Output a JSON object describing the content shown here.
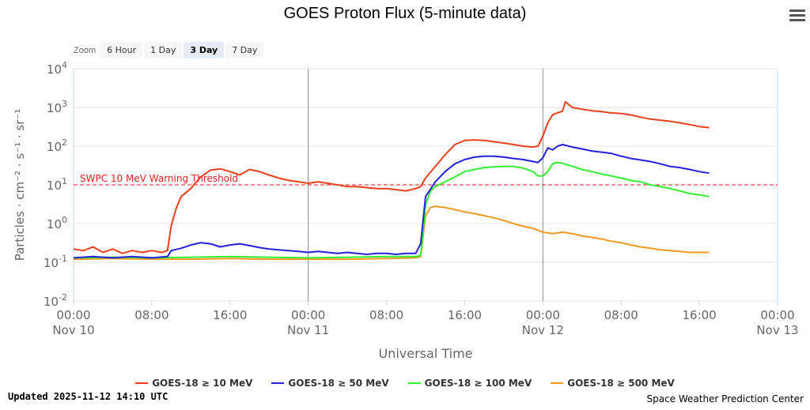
{
  "header": {
    "title": "GOES Proton Flux (5-minute data)",
    "menu_icon": "hamburger-menu-icon"
  },
  "zoom": {
    "label": "Zoom",
    "buttons": [
      {
        "label": "6 Hour",
        "active": false
      },
      {
        "label": "1 Day",
        "active": false
      },
      {
        "label": "3 Day",
        "active": true
      },
      {
        "label": "7 Day",
        "active": false
      }
    ]
  },
  "footer": {
    "updated": "Updated 2025-11-12 14:10 UTC",
    "credit": "Space Weather Prediction Center"
  },
  "chart_data": {
    "type": "line",
    "title": "GOES Proton Flux (5-minute data)",
    "xlabel": "Universal Time",
    "ylabel": "Particles · cm⁻² · s⁻¹ · sr⁻¹",
    "yscale": "log",
    "ylim": [
      0.01,
      10000
    ],
    "xlim_hours": [
      0,
      72
    ],
    "y_ticks": [
      {
        "exp": -2,
        "label_base": "10",
        "label_exp": "-2"
      },
      {
        "exp": -1,
        "label_base": "10",
        "label_exp": "-1"
      },
      {
        "exp": 0,
        "label_base": "10",
        "label_exp": "0"
      },
      {
        "exp": 1,
        "label_base": "10",
        "label_exp": "1"
      },
      {
        "exp": 2,
        "label_base": "10",
        "label_exp": "2"
      },
      {
        "exp": 3,
        "label_base": "10",
        "label_exp": "3"
      },
      {
        "exp": 4,
        "label_base": "10",
        "label_exp": "4"
      }
    ],
    "x_ticks": [
      {
        "hour": 0,
        "time": "00:00",
        "date": "Nov 10"
      },
      {
        "hour": 8,
        "time": "08:00",
        "date": ""
      },
      {
        "hour": 16,
        "time": "16:00",
        "date": ""
      },
      {
        "hour": 24,
        "time": "00:00",
        "date": "Nov 11"
      },
      {
        "hour": 32,
        "time": "08:00",
        "date": ""
      },
      {
        "hour": 40,
        "time": "16:00",
        "date": ""
      },
      {
        "hour": 48,
        "time": "00:00",
        "date": "Nov 12"
      },
      {
        "hour": 56,
        "time": "08:00",
        "date": ""
      },
      {
        "hour": 64,
        "time": "16:00",
        "date": ""
      },
      {
        "hour": 72,
        "time": "00:00",
        "date": "Nov 13"
      }
    ],
    "day_lines_hours": [
      24,
      48
    ],
    "threshold": {
      "value": 10,
      "label": "SWPC 10 MeV Warning Threshold",
      "color": "#dd2222"
    },
    "series": [
      {
        "name": "GOES-18 ≥ 10 MeV",
        "color": "#e8401c",
        "points": [
          [
            0,
            0.22
          ],
          [
            1,
            0.2
          ],
          [
            2,
            0.25
          ],
          [
            3,
            0.18
          ],
          [
            4,
            0.22
          ],
          [
            5,
            0.17
          ],
          [
            6,
            0.2
          ],
          [
            7,
            0.18
          ],
          [
            8,
            0.2
          ],
          [
            9,
            0.18
          ],
          [
            9.6,
            0.2
          ],
          [
            10,
            0.9
          ],
          [
            10.5,
            2.5
          ],
          [
            11,
            5
          ],
          [
            12,
            8
          ],
          [
            13,
            16
          ],
          [
            14,
            24
          ],
          [
            15,
            26
          ],
          [
            16,
            22
          ],
          [
            17,
            18
          ],
          [
            18,
            25
          ],
          [
            19,
            22
          ],
          [
            20,
            18
          ],
          [
            21,
            15
          ],
          [
            22,
            13
          ],
          [
            23,
            12
          ],
          [
            24,
            11
          ],
          [
            25,
            12
          ],
          [
            26,
            11
          ],
          [
            27,
            10
          ],
          [
            28,
            9
          ],
          [
            29,
            9
          ],
          [
            30,
            8.5
          ],
          [
            31,
            8
          ],
          [
            32,
            8
          ],
          [
            33,
            7.5
          ],
          [
            34,
            7
          ],
          [
            34.5,
            7.5
          ],
          [
            35,
            8
          ],
          [
            35.5,
            9
          ],
          [
            36,
            15
          ],
          [
            37,
            30
          ],
          [
            38,
            60
          ],
          [
            39,
            110
          ],
          [
            40,
            140
          ],
          [
            41,
            145
          ],
          [
            42,
            140
          ],
          [
            43,
            130
          ],
          [
            44,
            120
          ],
          [
            45,
            110
          ],
          [
            46,
            100
          ],
          [
            47,
            95
          ],
          [
            47.5,
            100
          ],
          [
            48,
            180
          ],
          [
            48.5,
            400
          ],
          [
            49,
            650
          ],
          [
            50,
            800
          ],
          [
            50.3,
            1400
          ],
          [
            51,
            1000
          ],
          [
            52,
            900
          ],
          [
            53,
            820
          ],
          [
            54,
            780
          ],
          [
            55,
            720
          ],
          [
            56,
            700
          ],
          [
            57,
            640
          ],
          [
            58,
            560
          ],
          [
            59,
            500
          ],
          [
            60,
            470
          ],
          [
            61,
            440
          ],
          [
            62,
            400
          ],
          [
            63,
            360
          ],
          [
            64,
            320
          ],
          [
            65,
            300
          ]
        ]
      },
      {
        "name": "GOES-18 ≥ 50 MeV",
        "color": "#2222dd",
        "points": [
          [
            0,
            0.13
          ],
          [
            2,
            0.14
          ],
          [
            4,
            0.13
          ],
          [
            6,
            0.14
          ],
          [
            8,
            0.13
          ],
          [
            9.6,
            0.14
          ],
          [
            10,
            0.2
          ],
          [
            11,
            0.23
          ],
          [
            12,
            0.28
          ],
          [
            13,
            0.32
          ],
          [
            14,
            0.3
          ],
          [
            15,
            0.25
          ],
          [
            16,
            0.28
          ],
          [
            17,
            0.3
          ],
          [
            18,
            0.27
          ],
          [
            19,
            0.24
          ],
          [
            20,
            0.22
          ],
          [
            21,
            0.21
          ],
          [
            22,
            0.2
          ],
          [
            23,
            0.19
          ],
          [
            24,
            0.18
          ],
          [
            25,
            0.19
          ],
          [
            26,
            0.18
          ],
          [
            27,
            0.17
          ],
          [
            28,
            0.18
          ],
          [
            29,
            0.17
          ],
          [
            30,
            0.16
          ],
          [
            31,
            0.17
          ],
          [
            32,
            0.17
          ],
          [
            33,
            0.16
          ],
          [
            34,
            0.17
          ],
          [
            35,
            0.17
          ],
          [
            35.5,
            0.3
          ],
          [
            36,
            5
          ],
          [
            37,
            12
          ],
          [
            38,
            22
          ],
          [
            39,
            35
          ],
          [
            40,
            45
          ],
          [
            41,
            52
          ],
          [
            42,
            55
          ],
          [
            43,
            55
          ],
          [
            44,
            52
          ],
          [
            45,
            48
          ],
          [
            46,
            45
          ],
          [
            47,
            40
          ],
          [
            47.5,
            38
          ],
          [
            48,
            50
          ],
          [
            48.5,
            90
          ],
          [
            49,
            80
          ],
          [
            49.5,
            100
          ],
          [
            50,
            110
          ],
          [
            51,
            95
          ],
          [
            52,
            85
          ],
          [
            53,
            75
          ],
          [
            54,
            70
          ],
          [
            55,
            65
          ],
          [
            56,
            55
          ],
          [
            57,
            48
          ],
          [
            58,
            44
          ],
          [
            59,
            40
          ],
          [
            60,
            35
          ],
          [
            61,
            30
          ],
          [
            62,
            28
          ],
          [
            63,
            25
          ],
          [
            64,
            22
          ],
          [
            65,
            20
          ]
        ]
      },
      {
        "name": "GOES-18 ≥ 100 MeV",
        "color": "#33ee33",
        "points": [
          [
            0,
            0.13
          ],
          [
            4,
            0.135
          ],
          [
            8,
            0.13
          ],
          [
            12,
            0.135
          ],
          [
            16,
            0.14
          ],
          [
            20,
            0.135
          ],
          [
            24,
            0.13
          ],
          [
            28,
            0.135
          ],
          [
            32,
            0.14
          ],
          [
            35,
            0.14
          ],
          [
            35.5,
            0.15
          ],
          [
            36,
            3
          ],
          [
            36.5,
            7
          ],
          [
            37,
            9
          ],
          [
            38,
            12
          ],
          [
            39,
            16
          ],
          [
            40,
            22
          ],
          [
            41,
            25
          ],
          [
            42,
            28
          ],
          [
            43,
            29
          ],
          [
            44,
            30
          ],
          [
            45,
            30
          ],
          [
            46,
            27
          ],
          [
            47,
            22
          ],
          [
            47.5,
            17
          ],
          [
            48,
            17
          ],
          [
            48.5,
            22
          ],
          [
            49,
            35
          ],
          [
            49.5,
            38
          ],
          [
            50,
            36
          ],
          [
            51,
            30
          ],
          [
            52,
            25
          ],
          [
            53,
            22
          ],
          [
            54,
            19
          ],
          [
            55,
            17
          ],
          [
            56,
            15
          ],
          [
            57,
            13
          ],
          [
            58,
            12
          ],
          [
            59,
            10
          ],
          [
            60,
            9
          ],
          [
            61,
            8
          ],
          [
            62,
            7
          ],
          [
            63,
            6
          ],
          [
            64,
            5.5
          ],
          [
            65,
            5
          ]
        ]
      },
      {
        "name": "GOES-18 ≥ 500 MeV",
        "color": "#ee9922",
        "points": [
          [
            0,
            0.12
          ],
          [
            4,
            0.125
          ],
          [
            8,
            0.12
          ],
          [
            12,
            0.12
          ],
          [
            16,
            0.125
          ],
          [
            20,
            0.12
          ],
          [
            24,
            0.12
          ],
          [
            28,
            0.12
          ],
          [
            32,
            0.125
          ],
          [
            35,
            0.13
          ],
          [
            35.5,
            0.14
          ],
          [
            36,
            1.6
          ],
          [
            36.5,
            2.6
          ],
          [
            37,
            2.8
          ],
          [
            38,
            2.6
          ],
          [
            39,
            2.3
          ],
          [
            40,
            2.0
          ],
          [
            41,
            1.8
          ],
          [
            42,
            1.6
          ],
          [
            43,
            1.4
          ],
          [
            44,
            1.2
          ],
          [
            45,
            1.0
          ],
          [
            46,
            0.85
          ],
          [
            47,
            0.75
          ],
          [
            48,
            0.6
          ],
          [
            49,
            0.55
          ],
          [
            50,
            0.6
          ],
          [
            51,
            0.55
          ],
          [
            52,
            0.48
          ],
          [
            53,
            0.44
          ],
          [
            54,
            0.4
          ],
          [
            55,
            0.35
          ],
          [
            56,
            0.32
          ],
          [
            57,
            0.28
          ],
          [
            58,
            0.25
          ],
          [
            59,
            0.23
          ],
          [
            60,
            0.21
          ],
          [
            61,
            0.2
          ],
          [
            62,
            0.19
          ],
          [
            63,
            0.18
          ],
          [
            64,
            0.18
          ],
          [
            65,
            0.18
          ]
        ]
      }
    ]
  }
}
